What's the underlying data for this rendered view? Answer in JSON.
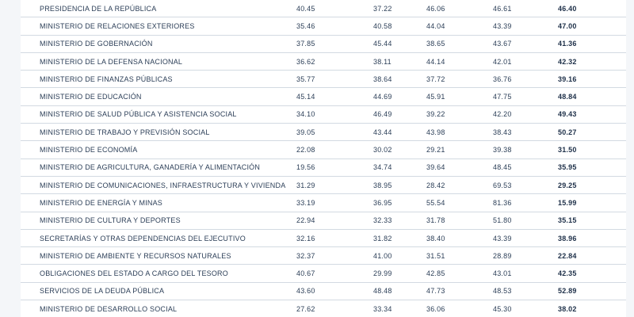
{
  "rows": [
    {
      "name": "PRESIDENCIA DE LA REPÚBLICA",
      "v1": "40.45",
      "v2": "37.22",
      "v3": "46.06",
      "v4": "46.61",
      "v5": "46.40"
    },
    {
      "name": "MINISTERIO DE RELACIONES EXTERIORES",
      "v1": "35.46",
      "v2": "40.58",
      "v3": "44.04",
      "v4": "43.39",
      "v5": "47.00"
    },
    {
      "name": "MINISTERIO DE GOBERNACIÓN",
      "v1": "37.85",
      "v2": "45.44",
      "v3": "38.65",
      "v4": "43.67",
      "v5": "41.36"
    },
    {
      "name": "MINISTERIO DE LA DEFENSA NACIONAL",
      "v1": "36.62",
      "v2": "38.11",
      "v3": "44.14",
      "v4": "42.01",
      "v5": "42.32"
    },
    {
      "name": "MINISTERIO DE FINANZAS PÚBLICAS",
      "v1": "35.77",
      "v2": "38.64",
      "v3": "37.72",
      "v4": "36.76",
      "v5": "39.16"
    },
    {
      "name": "MINISTERIO DE EDUCACIÓN",
      "v1": "45.14",
      "v2": "44.69",
      "v3": "45.91",
      "v4": "47.75",
      "v5": "48.84"
    },
    {
      "name": "MINISTERIO DE SALUD PÚBLICA Y ASISTENCIA SOCIAL",
      "v1": "34.10",
      "v2": "46.49",
      "v3": "39.22",
      "v4": "42.20",
      "v5": "49.43"
    },
    {
      "name": "MINISTERIO DE TRABAJO Y PREVISIÓN SOCIAL",
      "v1": "39.05",
      "v2": "43.44",
      "v3": "43.98",
      "v4": "38.43",
      "v5": "50.27"
    },
    {
      "name": "MINISTERIO DE ECONOMÍA",
      "v1": "22.08",
      "v2": "30.02",
      "v3": "29.21",
      "v4": "39.38",
      "v5": "31.50"
    },
    {
      "name": "MINISTERIO DE AGRICULTURA, GANADERÍA Y ALIMENTACIÓN",
      "v1": "19.56",
      "v2": "34.74",
      "v3": "39.64",
      "v4": "48.45",
      "v5": "35.95"
    },
    {
      "name": "MINISTERIO DE  COMUNICACIONES, INFRAESTRUCTURA Y VIVIENDA",
      "v1": "31.29",
      "v2": "38.95",
      "v3": "28.42",
      "v4": "69.53",
      "v5": "29.25"
    },
    {
      "name": "MINISTERIO DE ENERGÍA Y MINAS",
      "v1": "33.19",
      "v2": "36.95",
      "v3": "55.54",
      "v4": "81.36",
      "v5": "15.99"
    },
    {
      "name": "MINISTERIO DE CULTURA Y DEPORTES",
      "v1": "22.94",
      "v2": "32.33",
      "v3": "31.78",
      "v4": "51.80",
      "v5": "35.15"
    },
    {
      "name": "SECRETARÍAS Y OTRAS DEPENDENCIAS DEL EJECUTIVO",
      "v1": "32.16",
      "v2": "31.82",
      "v3": "38.40",
      "v4": "43.39",
      "v5": "38.96"
    },
    {
      "name": "MINISTERIO DE AMBIENTE Y RECURSOS NATURALES",
      "v1": "32.37",
      "v2": "41.00",
      "v3": "31.51",
      "v4": "28.89",
      "v5": "22.84"
    },
    {
      "name": "OBLIGACIONES DEL ESTADO A CARGO DEL TESORO",
      "v1": "40.67",
      "v2": "29.99",
      "v3": "42.85",
      "v4": "43.01",
      "v5": "42.35"
    },
    {
      "name": "SERVICIOS DE LA DEUDA PÚBLICA",
      "v1": "43.60",
      "v2": "48.48",
      "v3": "47.73",
      "v4": "48.53",
      "v5": "52.89"
    },
    {
      "name": "MINISTERIO DE DESARROLLO SOCIAL",
      "v1": "27.62",
      "v2": "33.34",
      "v3": "36.06",
      "v4": "45.30",
      "v5": "38.02"
    }
  ]
}
